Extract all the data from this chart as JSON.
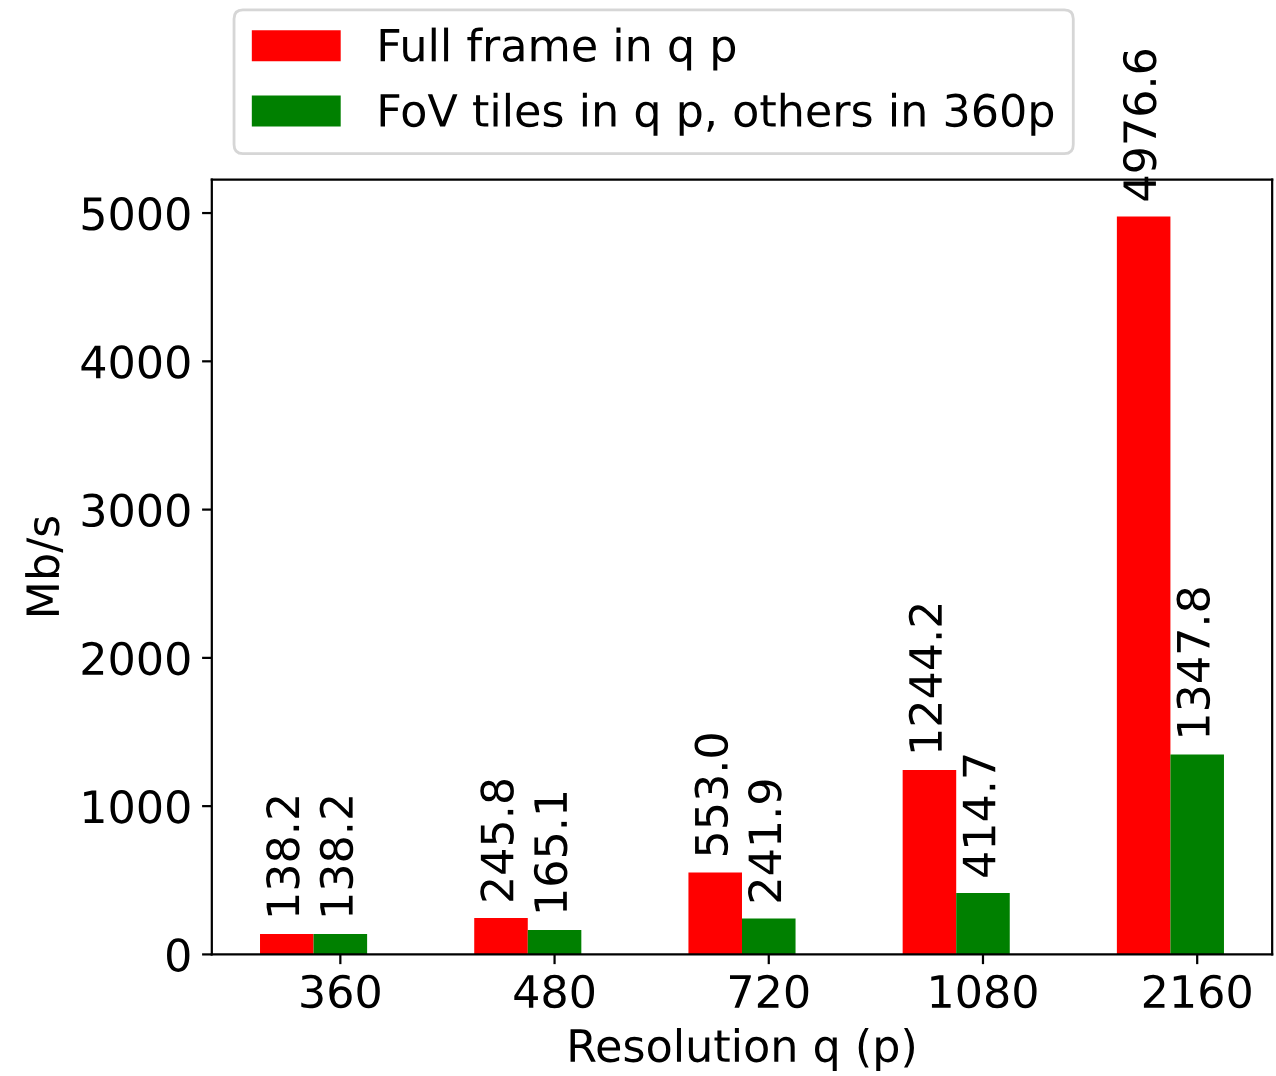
{
  "chart_data": {
    "type": "bar",
    "xlabel": "Resolution q (p)",
    "ylabel": "Mb/s",
    "categories": [
      "360",
      "480",
      "720",
      "1080",
      "2160"
    ],
    "series": [
      {
        "name": "Full frame in q p",
        "color": "#ff0000",
        "values": [
          138.2,
          245.8,
          553.0,
          1244.2,
          4976.6
        ],
        "value_labels": [
          "138.2",
          "245.8",
          "553.0",
          "1244.2",
          "4976.6"
        ]
      },
      {
        "name": "FoV tiles in q p, others in 360p",
        "color": "#008000",
        "values": [
          138.2,
          165.1,
          241.9,
          414.7,
          1347.8
        ],
        "value_labels": [
          "138.2",
          "165.1",
          "241.9",
          "414.7",
          "1347.8"
        ]
      }
    ],
    "ylim": [
      0,
      5225
    ],
    "yticks": [
      0,
      1000,
      2000,
      3000,
      4000,
      5000
    ],
    "grid": false,
    "legend": "top"
  }
}
